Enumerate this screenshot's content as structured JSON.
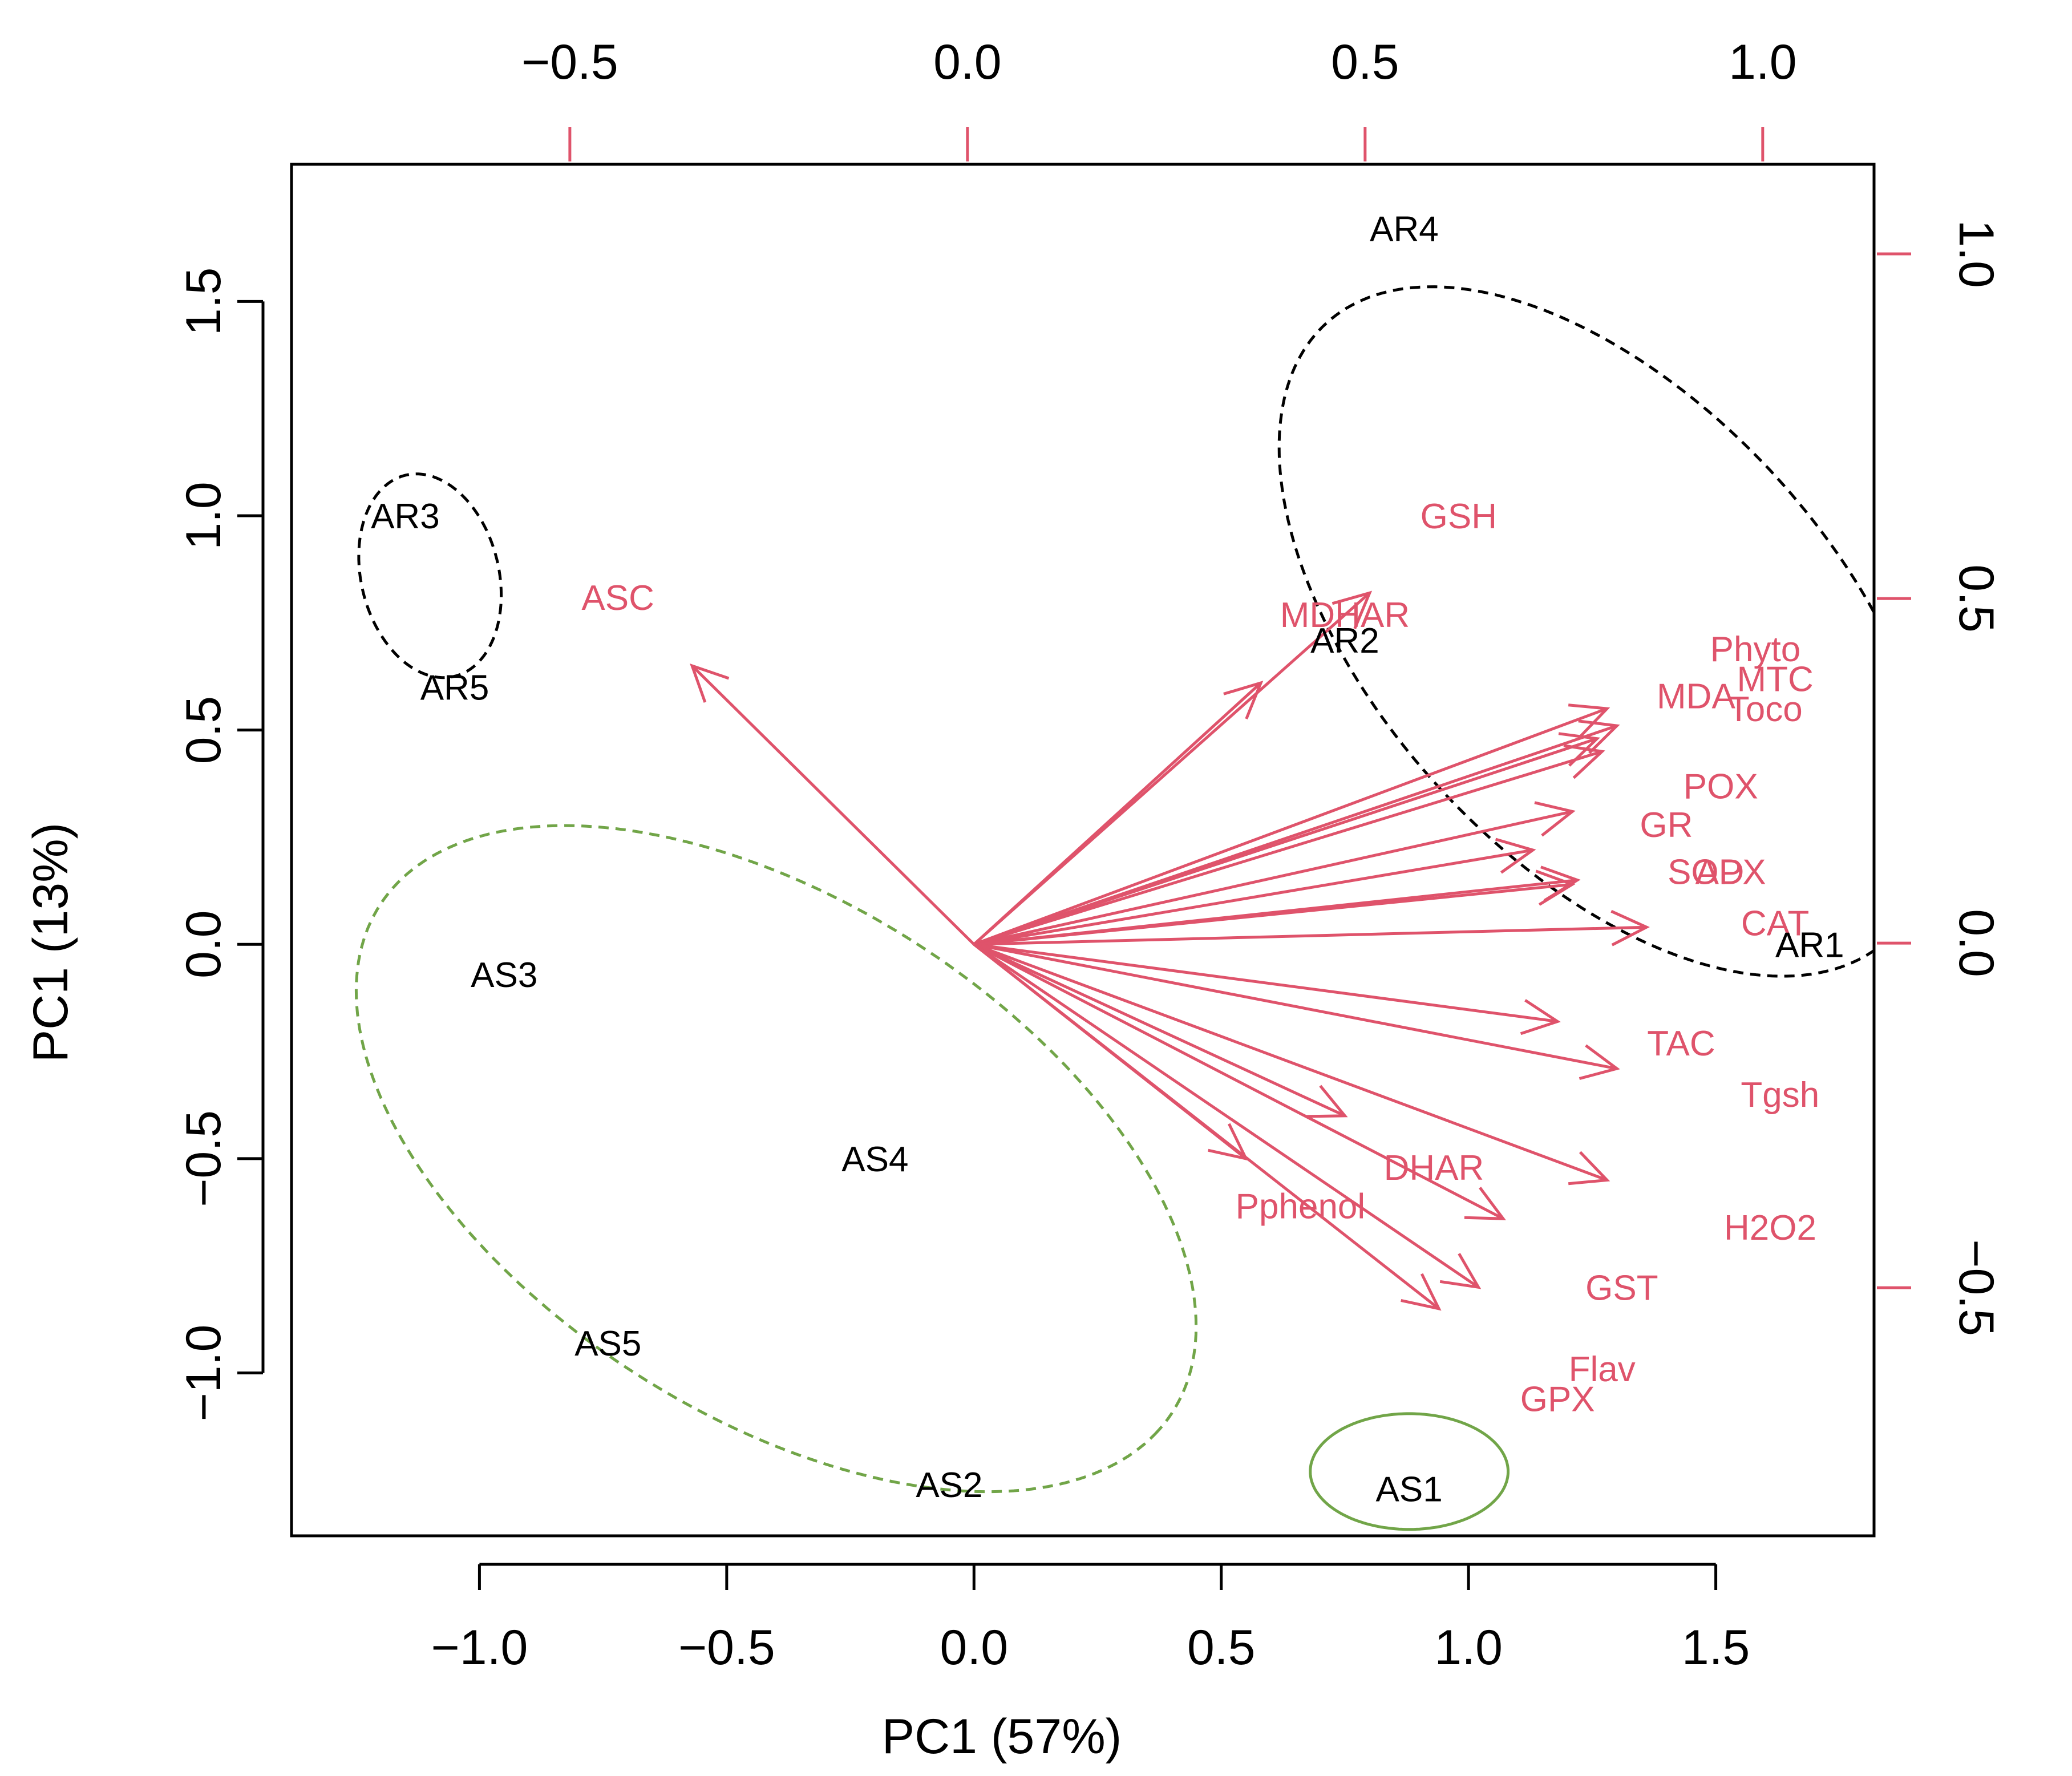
{
  "chart_data": {
    "type": "scatter",
    "subtype": "pca-biplot",
    "xlabel": "PC1 (57%)",
    "ylabel": "PC1 (13%)",
    "xlim": [
      -1.38,
      1.82
    ],
    "ylim": [
      -1.38,
      1.82
    ],
    "x_ticks": [
      {
        "v": -1.0,
        "label": "−1.0"
      },
      {
        "v": -0.5,
        "label": "−0.5"
      },
      {
        "v": 0.0,
        "label": "0.0"
      },
      {
        "v": 0.5,
        "label": "0.5"
      },
      {
        "v": 1.0,
        "label": "1.0"
      },
      {
        "v": 1.5,
        "label": "1.5"
      }
    ],
    "y_ticks": [
      {
        "v": -1.0,
        "label": "−1.0"
      },
      {
        "v": -0.5,
        "label": "−0.5"
      },
      {
        "v": 0.0,
        "label": "0.0"
      },
      {
        "v": 0.5,
        "label": "0.5"
      },
      {
        "v": 1.0,
        "label": "1.0"
      },
      {
        "v": 1.5,
        "label": "1.5"
      }
    ],
    "top_axis": {
      "range": [
        -0.85,
        1.14
      ],
      "ticks": [
        {
          "v": -0.5,
          "label": "−0.5"
        },
        {
          "v": 0.0,
          "label": "0.0"
        },
        {
          "v": 0.5,
          "label": "0.5"
        },
        {
          "v": 1.0,
          "label": "1.0"
        }
      ]
    },
    "right_axis": {
      "range": [
        -0.86,
        1.13
      ],
      "ticks": [
        {
          "v": -0.5,
          "label": "−0.5"
        },
        {
          "v": 0.0,
          "label": "0.0"
        },
        {
          "v": 0.5,
          "label": "0.5"
        },
        {
          "v": 1.0,
          "label": "1.0"
        }
      ]
    },
    "samples": [
      {
        "label": "AR1",
        "x": 1.69,
        "y": 0.0
      },
      {
        "label": "AR2",
        "x": 0.75,
        "y": 0.71
      },
      {
        "label": "AR3",
        "x": -1.15,
        "y": 1.0
      },
      {
        "label": "AR4",
        "x": 0.87,
        "y": 1.67
      },
      {
        "label": "AR5",
        "x": -1.05,
        "y": 0.6
      },
      {
        "label": "AS1",
        "x": 0.88,
        "y": -1.27
      },
      {
        "label": "AS2",
        "x": -0.05,
        "y": -1.26
      },
      {
        "label": "AS3",
        "x": -0.95,
        "y": -0.07
      },
      {
        "label": "AS4",
        "x": -0.2,
        "y": -0.5
      },
      {
        "label": "AS5",
        "x": -0.74,
        "y": -0.93
      }
    ],
    "variables": [
      {
        "label": "ASC",
        "x": -0.57,
        "y": 0.65,
        "lx": -0.72,
        "ly": 0.81
      },
      {
        "label": "GSH",
        "x": 0.8,
        "y": 0.82,
        "lx": 0.98,
        "ly": 1.0
      },
      {
        "label": "MDHAR",
        "x": 0.58,
        "y": 0.61,
        "lx": 0.75,
        "ly": 0.77
      },
      {
        "label": "Phyto",
        "x": 1.3,
        "y": 0.51,
        "lx": 1.58,
        "ly": 0.69
      },
      {
        "label": "MTC",
        "x": 1.28,
        "y": 0.55,
        "lx": 1.62,
        "ly": 0.62
      },
      {
        "label": "MDA",
        "x": 1.26,
        "y": 0.48,
        "lx": 1.46,
        "ly": 0.58
      },
      {
        "label": "Toco",
        "x": 1.27,
        "y": 0.45,
        "lx": 1.6,
        "ly": 0.55
      },
      {
        "label": "POX",
        "x": 1.21,
        "y": 0.31,
        "lx": 1.51,
        "ly": 0.37
      },
      {
        "label": "GR",
        "x": 1.13,
        "y": 0.22,
        "lx": 1.4,
        "ly": 0.28
      },
      {
        "label": "SOD",
        "x": 1.22,
        "y": 0.15,
        "lx": 1.48,
        "ly": 0.17
      },
      {
        "label": "APX",
        "x": 1.21,
        "y": 0.14,
        "lx": 1.53,
        "ly": 0.17
      },
      {
        "label": "CAT",
        "x": 1.36,
        "y": 0.04,
        "lx": 1.62,
        "ly": 0.05
      },
      {
        "label": "TAC",
        "x": 1.18,
        "y": -0.18,
        "lx": 1.43,
        "ly": -0.23
      },
      {
        "label": "Tgsh",
        "x": 1.3,
        "y": -0.29,
        "lx": 1.63,
        "ly": -0.35
      },
      {
        "label": "DHAR",
        "x": 0.75,
        "y": -0.4,
        "lx": 0.93,
        "ly": -0.52
      },
      {
        "label": "H2O2",
        "x": 1.28,
        "y": -0.55,
        "lx": 1.61,
        "ly": -0.66
      },
      {
        "label": "Pphenol",
        "x": 0.55,
        "y": -0.5,
        "lx": 0.66,
        "ly": -0.61
      },
      {
        "label": "GST",
        "x": 1.07,
        "y": -0.64,
        "lx": 1.31,
        "ly": -0.8
      },
      {
        "label": "Flav",
        "x": 1.02,
        "y": -0.8,
        "lx": 1.27,
        "ly": -0.99
      },
      {
        "label": "GPX",
        "x": 0.94,
        "y": -0.85,
        "lx": 1.18,
        "ly": -1.06
      }
    ],
    "ellipses": [
      {
        "group": "AR cluster (upper right)",
        "cx": 1.28,
        "cy": 0.73,
        "rx": 0.92,
        "ry": 0.49,
        "angle_deg": -55,
        "style": "dashed",
        "color": "#000000"
      },
      {
        "group": "AR cluster (upper left)",
        "cx": -1.1,
        "cy": 0.86,
        "rx": 0.24,
        "ry": 0.14,
        "angle_deg": -80,
        "style": "dashed",
        "color": "#000000"
      },
      {
        "group": "AS cluster",
        "cx": -0.4,
        "cy": -0.5,
        "rx": 1.0,
        "ry": 0.57,
        "angle_deg": -40,
        "style": "dashed",
        "color": "#71a548"
      },
      {
        "group": "AS1",
        "cx": 0.88,
        "cy": -1.23,
        "rx": 0.2,
        "ry": 0.135,
        "angle_deg": 0,
        "style": "solid",
        "color": "#71a548"
      }
    ],
    "colors": {
      "sample": "#000000",
      "variable": "#df536b",
      "axis": "#000000",
      "secondary_axis": "#df536b"
    }
  }
}
